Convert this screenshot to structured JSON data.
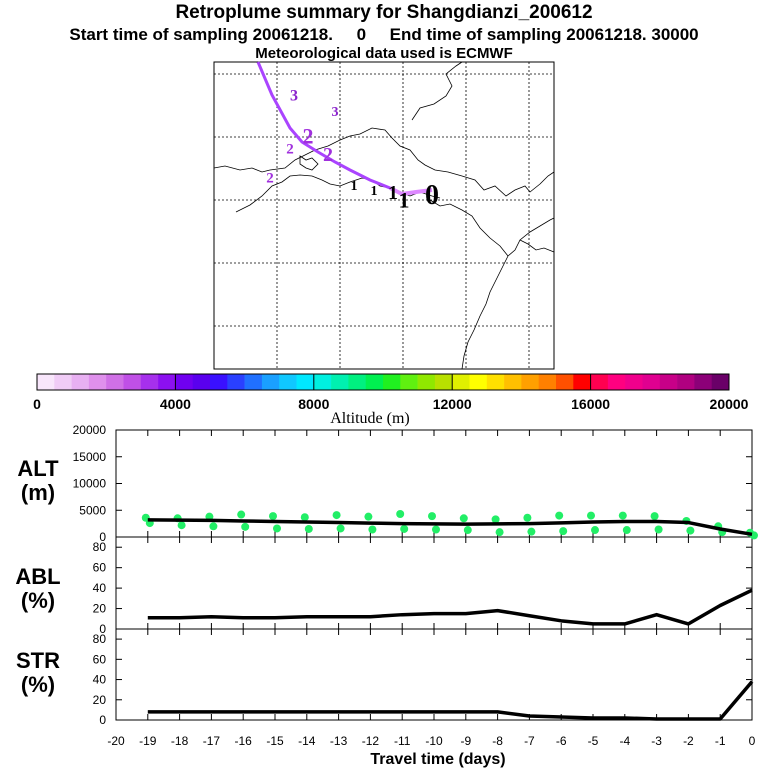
{
  "title": {
    "line1": "Retroplume summary for Shangdianzi_200612",
    "line2": "Start time of sampling 20061218.     0     End time of sampling 20061218. 30000",
    "line3": "Meteorological data used is ECMWF"
  },
  "map": {
    "trajectory_color": "#aa44ff",
    "trajectory_recent_color": "#dd88ff",
    "markers": [
      {
        "label": "3",
        "color": "#8a22cc"
      },
      {
        "label": "3",
        "color": "#8a22cc"
      },
      {
        "label": "2",
        "color": "#a030dd"
      },
      {
        "label": "2",
        "color": "#a030dd"
      },
      {
        "label": "2",
        "color": "#a030dd"
      },
      {
        "label": "2",
        "color": "#a030dd"
      },
      {
        "label": "1",
        "color": "#000000"
      },
      {
        "label": "1",
        "color": "#000000"
      },
      {
        "label": "1",
        "color": "#000000"
      },
      {
        "label": "1",
        "color": "#000000"
      },
      {
        "label": "0",
        "color": "#000000"
      }
    ]
  },
  "colorbar": {
    "label": "Altitude (m)",
    "tick_labels": [
      "0",
      "4000",
      "8000",
      "12000",
      "16000",
      "20000"
    ],
    "colors": [
      "#f8e6fb",
      "#f0ccf6",
      "#e8b0f2",
      "#df90ec",
      "#d070e6",
      "#c050e6",
      "#a630ec",
      "#8c10f0",
      "#7000f0",
      "#5a00ee",
      "#3a10ff",
      "#2a40ff",
      "#2070ff",
      "#1aa0ff",
      "#10c8ff",
      "#00e8ff",
      "#00f0e0",
      "#00f0b0",
      "#00f080",
      "#00f050",
      "#20f020",
      "#60f010",
      "#90e800",
      "#b8e000",
      "#e0f000",
      "#ffff00",
      "#ffe000",
      "#ffc000",
      "#ffa000",
      "#ff8000",
      "#ff5000",
      "#ff0000",
      "#ff0050",
      "#ff0080",
      "#f0008c",
      "#e00090",
      "#c80088",
      "#b00080",
      "#8c0078",
      "#6a0068"
    ]
  },
  "panel_labels": {
    "alt": [
      "ALT",
      "(m)"
    ],
    "abl": [
      "ABL",
      "(%)"
    ],
    "str": [
      "STR",
      "(%)"
    ]
  },
  "chart_data": [
    {
      "type": "line",
      "title": "ALT (m)",
      "xlabel": "Travel time (days)",
      "ylabel": "ALT (m)",
      "x": [
        -19,
        -18,
        -17,
        -16,
        -15,
        -14,
        -13,
        -12,
        -11,
        -10,
        -9,
        -8,
        -7,
        -6,
        -5,
        -4,
        -3,
        -2,
        -1,
        0
      ],
      "xlim": [
        -20,
        0
      ],
      "ylim": [
        0,
        20000
      ],
      "y_ticks": [
        0,
        5000,
        10000,
        15000,
        20000
      ],
      "series": [
        {
          "name": "mean altitude",
          "color": "#000000",
          "values": [
            3200,
            3150,
            3100,
            3000,
            2900,
            2800,
            2700,
            2600,
            2500,
            2450,
            2400,
            2450,
            2500,
            2650,
            2800,
            2900,
            2900,
            2700,
            1500,
            500
          ]
        },
        {
          "name": "upper altitude",
          "color": "#22ee66",
          "values": [
            3600,
            3500,
            3800,
            4200,
            3900,
            3700,
            4100,
            3800,
            4300,
            3900,
            3500,
            3300,
            3600,
            4000,
            4000,
            4000,
            3900,
            3000,
            2000,
            800
          ]
        },
        {
          "name": "lower altitude",
          "color": "#22ee66",
          "values": [
            2600,
            2200,
            2000,
            1900,
            1600,
            1500,
            1600,
            1400,
            1500,
            1400,
            1300,
            900,
            1000,
            1100,
            1300,
            1300,
            1400,
            1200,
            900,
            300
          ]
        }
      ]
    },
    {
      "type": "line",
      "title": "ABL (%)",
      "ylabel": "ABL (%)",
      "x": [
        -19,
        -18,
        -17,
        -16,
        -15,
        -14,
        -13,
        -12,
        -11,
        -10,
        -9,
        -8,
        -7,
        -6,
        -5,
        -4,
        -3,
        -2,
        -1,
        0
      ],
      "xlim": [
        -20,
        0
      ],
      "ylim": [
        0,
        90
      ],
      "y_ticks": [
        0,
        20,
        40,
        60,
        80
      ],
      "series": [
        {
          "name": "ABL",
          "color": "#000000",
          "values": [
            11,
            11,
            12,
            11,
            11,
            12,
            12,
            12,
            14,
            15,
            15,
            18,
            13,
            8,
            5,
            5,
            14,
            5,
            23,
            38
          ]
        }
      ]
    },
    {
      "type": "line",
      "title": "STR (%)",
      "ylabel": "STR (%)",
      "x": [
        -19,
        -18,
        -17,
        -16,
        -15,
        -14,
        -13,
        -12,
        -11,
        -10,
        -9,
        -8,
        -7,
        -6,
        -5,
        -4,
        -3,
        -2,
        -1,
        0
      ],
      "xlim": [
        -20,
        0
      ],
      "ylim": [
        0,
        90
      ],
      "y_ticks": [
        0,
        20,
        40,
        60,
        80
      ],
      "series": [
        {
          "name": "STR",
          "color": "#000000",
          "values": [
            8,
            8,
            8,
            8,
            8,
            8,
            8,
            8,
            8,
            8,
            8,
            8,
            4,
            3,
            2,
            2,
            1,
            1,
            1,
            38
          ]
        }
      ]
    }
  ],
  "x_ticks": [
    "-20",
    "-19",
    "-18",
    "-17",
    "-16",
    "-15",
    "-14",
    "-13",
    "-12",
    "-11",
    "-10",
    "-9",
    "-8",
    "-7",
    "-6",
    "-5",
    "-4",
    "-3",
    "-2",
    "-1",
    "0"
  ]
}
